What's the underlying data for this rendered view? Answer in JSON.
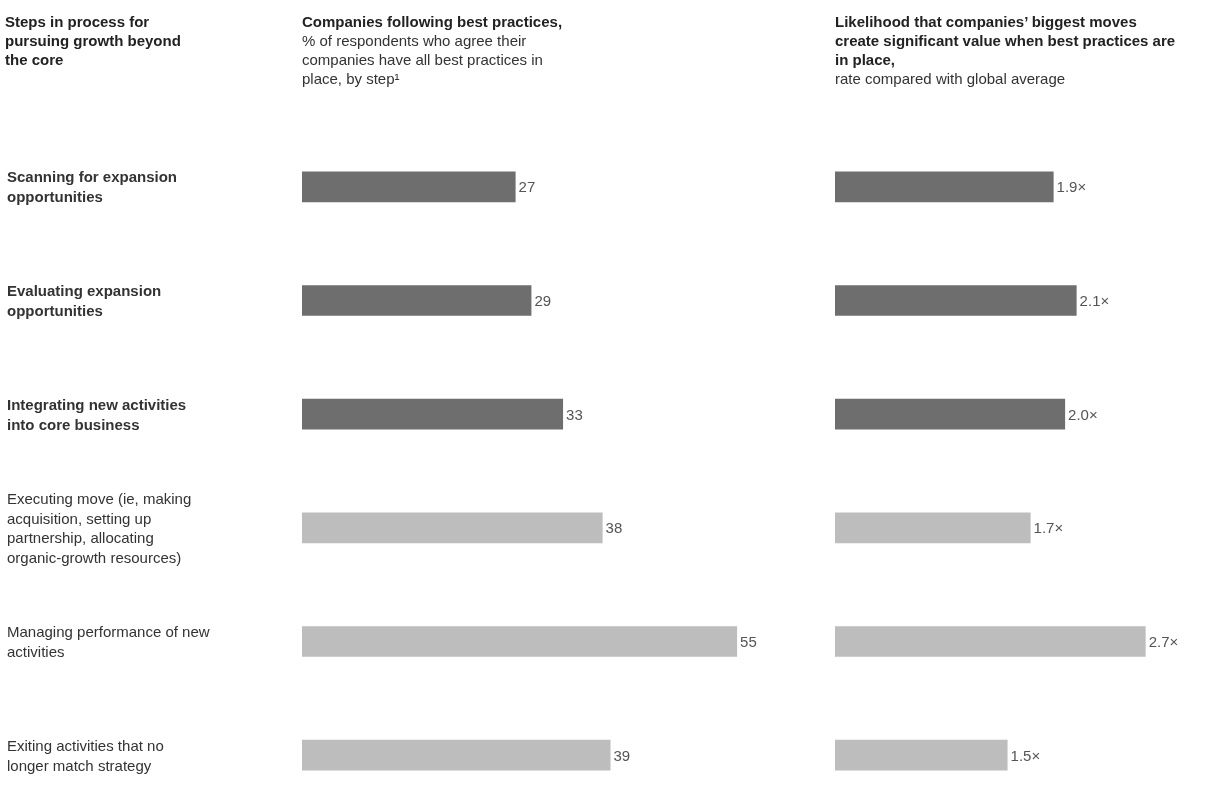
{
  "chart_data": [
    {
      "type": "bar",
      "orientation": "horizontal",
      "title": "Companies following best practices,",
      "subtitle": "% of respondents who agree their companies have all best practices in place, by step¹",
      "ylabel": "Steps in process for pursuing growth beyond the core",
      "categories": [
        "Scanning for expansion opportunities",
        "Evaluating expansion opportunities",
        "Integrating new activities into core business",
        "Executing move (ie, making acquisition, setting up partnership, allocating organic-growth resources)",
        "Managing performance of new activities",
        "Exiting activities that no longer match strategy"
      ],
      "values": [
        27,
        29,
        33,
        38,
        55,
        39
      ],
      "colors": [
        "#6e6e6e",
        "#6e6e6e",
        "#6e6e6e",
        "#bdbdbd",
        "#bdbdbd",
        "#bdbdbd"
      ],
      "data_labels": true,
      "tick_labels": "y"
    },
    {
      "type": "bar",
      "orientation": "horizontal",
      "title": "Likelihood that companies’ biggest moves create significant value when best practices are in place,",
      "subtitle": "rate compared with global average",
      "values": [
        1.9,
        2.1,
        2.0,
        1.7,
        2.7,
        1.5
      ],
      "value_labels": [
        "1.9×",
        "2.1×",
        "2.0×",
        "1.7×",
        "2.7×",
        "1.5×"
      ],
      "colors": [
        "#6e6e6e",
        "#6e6e6e",
        "#6e6e6e",
        "#bdbdbd",
        "#bdbdbd",
        "#bdbdbd"
      ],
      "tick_labels": false
    }
  ]
}
